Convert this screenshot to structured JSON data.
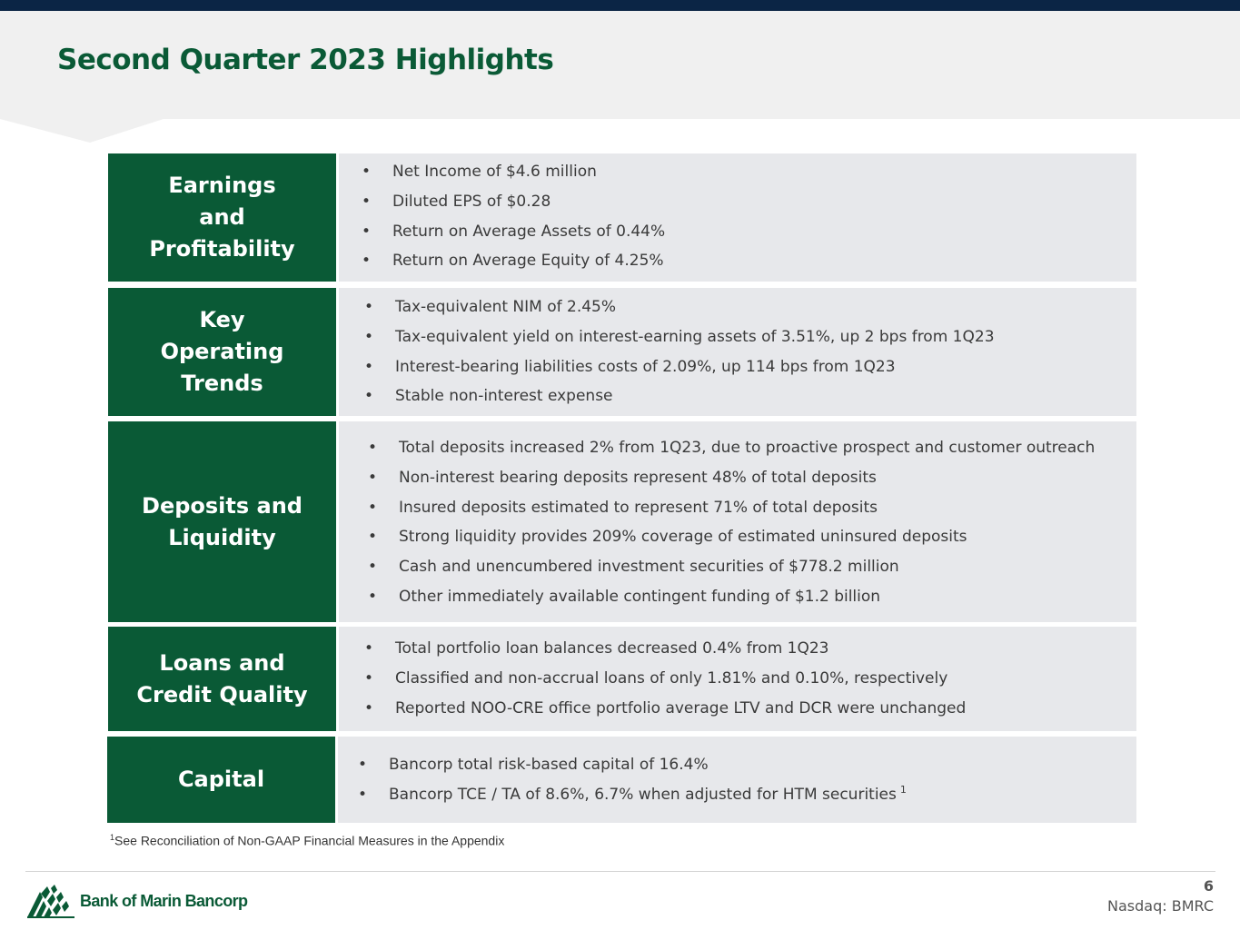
{
  "title": "Second Quarter 2023 Highlights",
  "sections": [
    {
      "label": "Earnings\nand\nProfitability",
      "bullets": [
        "Net Income of $4.6 million",
        "Diluted EPS of $0.28",
        "Return on Average Assets of 0.44%",
        "Return on Average Equity of 4.25%"
      ]
    },
    {
      "label": "Key\nOperating\nTrends",
      "bullets": [
        "Tax-equivalent NIM of 2.45%",
        "Tax-equivalent yield on interest-earning assets of 3.51%, up 2 bps from 1Q23",
        "Interest-bearing liabilities costs of 2.09%, up 114 bps from 1Q23",
        "Stable non-interest expense"
      ]
    },
    {
      "label": "Deposits and\nLiquidity",
      "bullets": [
        "Total deposits increased 2% from 1Q23, due to proactive prospect and customer outreach",
        "Non-interest bearing deposits represent 48% of total deposits",
        "Insured deposits estimated to represent 71% of total deposits",
        "Strong liquidity provides 209% coverage of estimated uninsured deposits",
        "Cash and unencumbered investment securities of $778.2 million",
        "Other immediately available contingent funding of $1.2 billion"
      ]
    },
    {
      "label": "Loans and\nCredit Quality",
      "bullets": [
        "Total portfolio loan balances decreased 0.4% from 1Q23",
        "Classified and non-accrual loans of only 1.81% and 0.10%, respectively",
        "Reported NOO-CRE office portfolio average LTV and DCR were unchanged"
      ]
    },
    {
      "label": "Capital",
      "bullets": [
        "Bancorp total risk-based capital of 16.4%",
        "Bancorp TCE / TA of 8.6%, 6.7% when adjusted for HTM securities"
      ],
      "superscript": "1"
    }
  ],
  "footnote": {
    "mark": "1",
    "text": "See Reconciliation of Non-GAAP Financial Measures in the Appendix"
  },
  "footer": {
    "logo_text": "Bank of Marin Bancorp",
    "page_number": "6",
    "ticker": "Nasdaq: BMRC"
  },
  "colors": {
    "brand_green": "#0a5a36",
    "top_bar_navy": "#0b2545",
    "panel_gray": "#e7e8eb"
  }
}
